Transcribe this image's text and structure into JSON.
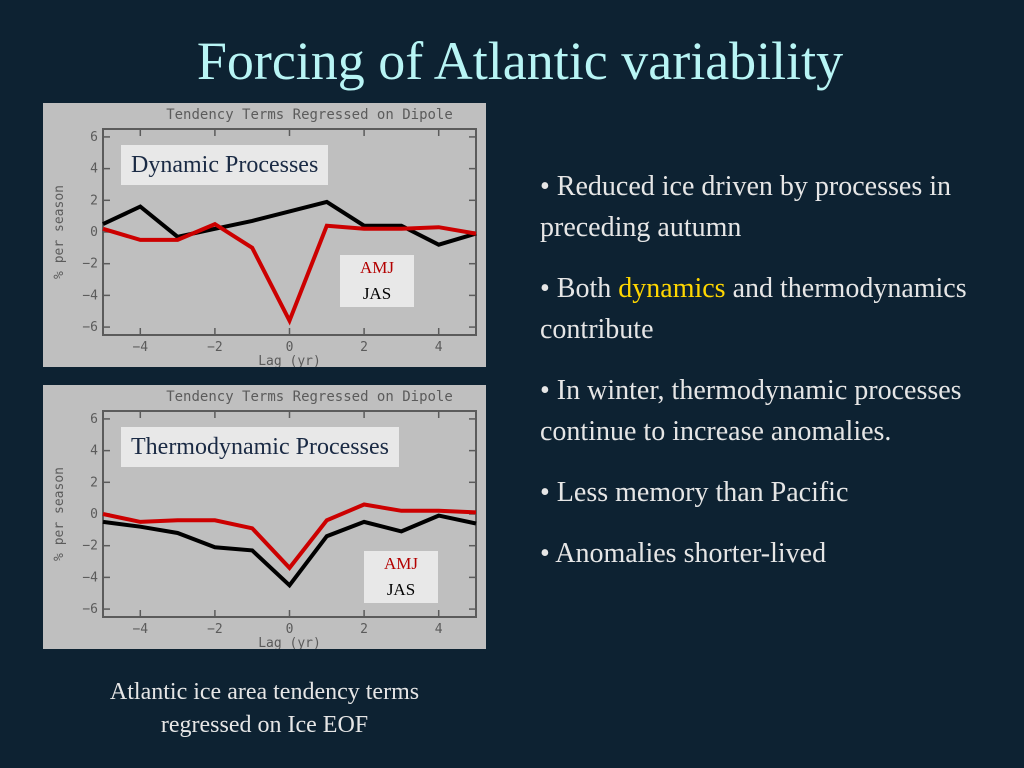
{
  "slide": {
    "title": "Forcing of Atlantic variability",
    "caption_line1": "Atlantic ice area tendency terms",
    "caption_line2": "regressed on Ice EOF"
  },
  "bullets": {
    "b1": "• Reduced ice driven by processes in preceding autumn",
    "b2_pre": "• Both ",
    "b2_hl": "dynamics",
    "b2_post": " and thermodynamics contribute",
    "b3": "• In winter, thermodynamic processes continue to increase anomalies.",
    "b4": "• Less memory than Pacific",
    "b5": "• Anomalies shorter-lived"
  },
  "colors": {
    "background": "#0d2232",
    "title": "#b8f5f5",
    "highlight": "#ffd700",
    "amj": "#cc0000",
    "jas": "#000000"
  },
  "chart_data": [
    {
      "type": "line",
      "title": "Tendency Terms Regressed on Dipole",
      "overlay_label": "Dynamic Processes",
      "xlabel": "Lag (yr)",
      "ylabel": "% per season",
      "xlim": [
        -5,
        5
      ],
      "ylim": [
        -6.5,
        6.5
      ],
      "xticks": [
        -4,
        -2,
        0,
        2,
        4
      ],
      "yticks": [
        6,
        4,
        2,
        0,
        -2,
        -4,
        -6
      ],
      "legend": [
        "AMJ",
        "JAS"
      ],
      "series": [
        {
          "name": "JAS",
          "color": "#000000",
          "x": [
            -5,
            -4,
            -3,
            -2,
            -1,
            0,
            1,
            2,
            3,
            4,
            5
          ],
          "y": [
            0.5,
            1.6,
            -0.3,
            0.2,
            0.7,
            1.3,
            1.9,
            0.4,
            0.4,
            -0.8,
            -0.1
          ]
        },
        {
          "name": "AMJ",
          "color": "#cc0000",
          "x": [
            -5,
            -4,
            -3,
            -2,
            -1,
            0,
            1,
            2,
            3,
            4,
            5
          ],
          "y": [
            0.2,
            -0.5,
            -0.5,
            0.5,
            -1.0,
            -5.6,
            0.4,
            0.2,
            0.2,
            0.3,
            -0.1
          ]
        }
      ]
    },
    {
      "type": "line",
      "title": "Tendency Terms Regressed on Dipole",
      "overlay_label": "Thermodynamic Processes",
      "xlabel": "Lag (yr)",
      "ylabel": "% per season",
      "xlim": [
        -5,
        5
      ],
      "ylim": [
        -6.5,
        6.5
      ],
      "xticks": [
        -4,
        -2,
        0,
        2,
        4
      ],
      "yticks": [
        6,
        4,
        2,
        0,
        -2,
        -4,
        -6
      ],
      "legend": [
        "AMJ",
        "JAS"
      ],
      "series": [
        {
          "name": "JAS",
          "color": "#000000",
          "x": [
            -5,
            -4,
            -3,
            -2,
            -1,
            0,
            1,
            2,
            3,
            4,
            5
          ],
          "y": [
            -0.5,
            -0.8,
            -1.2,
            -2.1,
            -2.3,
            -4.5,
            -1.4,
            -0.5,
            -1.1,
            -0.1,
            -0.6
          ]
        },
        {
          "name": "AMJ",
          "color": "#cc0000",
          "x": [
            -5,
            -4,
            -3,
            -2,
            -1,
            0,
            1,
            2,
            3,
            4,
            5
          ],
          "y": [
            0.0,
            -0.5,
            -0.4,
            -0.4,
            -0.9,
            -3.4,
            -0.4,
            0.6,
            0.2,
            0.2,
            0.1
          ]
        }
      ]
    }
  ]
}
